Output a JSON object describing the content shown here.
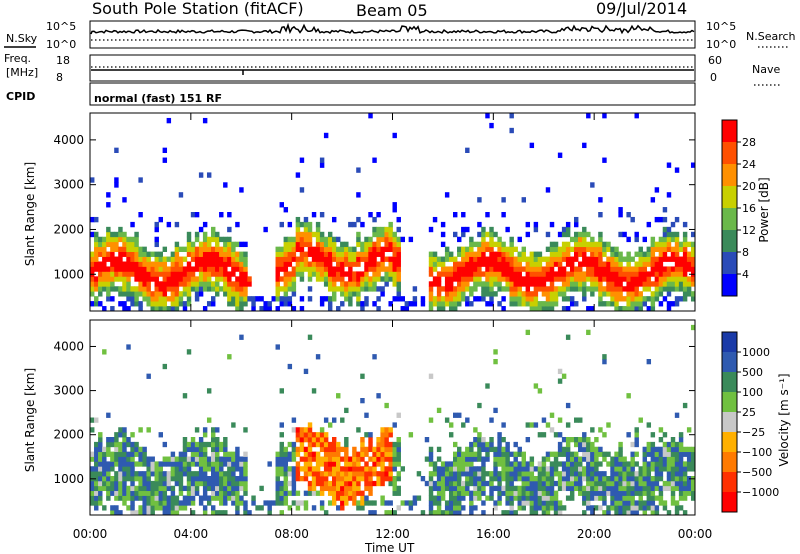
{
  "header": {
    "station": "South Pole Station (fitACF)",
    "beam": "Beam 05",
    "date": "09/Jul/2014"
  },
  "strips": {
    "nsky_label": "N.Sky",
    "nsearch_label": "N.Search",
    "nsky_ticks": [
      "10^5",
      "10^0"
    ],
    "nsearch_ticks": [
      "10^5",
      "10^0"
    ],
    "freq_label_1": "Freq.",
    "freq_label_2": "[MHz]",
    "freq_ticks": [
      "18",
      "8"
    ],
    "nave_label": "Nave",
    "nave_ticks": [
      "60",
      "0"
    ],
    "cpid_label": "CPID",
    "cpid_text": "normal (fast) 151 RF"
  },
  "chart_data": [
    {
      "type": "heatmap",
      "name": "power",
      "ylabel": "Slant Range [km]",
      "yticks": [
        "1000",
        "2000",
        "3000",
        "4000"
      ],
      "xticks": [
        "00:00",
        "04:00",
        "08:00",
        "12:00",
        "16:00",
        "20:00",
        "00:00"
      ],
      "xlabel": "Time UT",
      "colorbar_label": "Power [dB]",
      "colorbar_ticks": [
        "4",
        "8",
        "12",
        "16",
        "20",
        "24",
        "28"
      ],
      "colorbar_colors": [
        "#0000ff",
        "#2a4bb8",
        "#3a8a5a",
        "#6ab84a",
        "#c8d000",
        "#ff9000",
        "#ff5000",
        "#ff0000"
      ],
      "ylim": [
        180,
        4600
      ],
      "xlim": [
        0,
        24
      ]
    },
    {
      "type": "heatmap",
      "name": "velocity",
      "ylabel": "Slant Range [km]",
      "yticks": [
        "1000",
        "2000",
        "3000",
        "4000"
      ],
      "xticks": [
        "00:00",
        "04:00",
        "08:00",
        "12:00",
        "16:00",
        "20:00",
        "00:00"
      ],
      "xlabel": "Time UT",
      "colorbar_label": "Velocity [m s⁻¹]",
      "colorbar_ticks": [
        "1000",
        "500",
        "100",
        "25",
        "−25",
        "−100",
        "−500",
        "−1000"
      ],
      "colorbar_colors": [
        "#1a3aa8",
        "#2f5ab0",
        "#3a8a5a",
        "#70c040",
        "#c8c8c8",
        "#ffb000",
        "#ff7a00",
        "#ff3000",
        "#ff0000"
      ],
      "ylim": [
        180,
        4600
      ],
      "xlim": [
        0,
        24
      ]
    }
  ]
}
